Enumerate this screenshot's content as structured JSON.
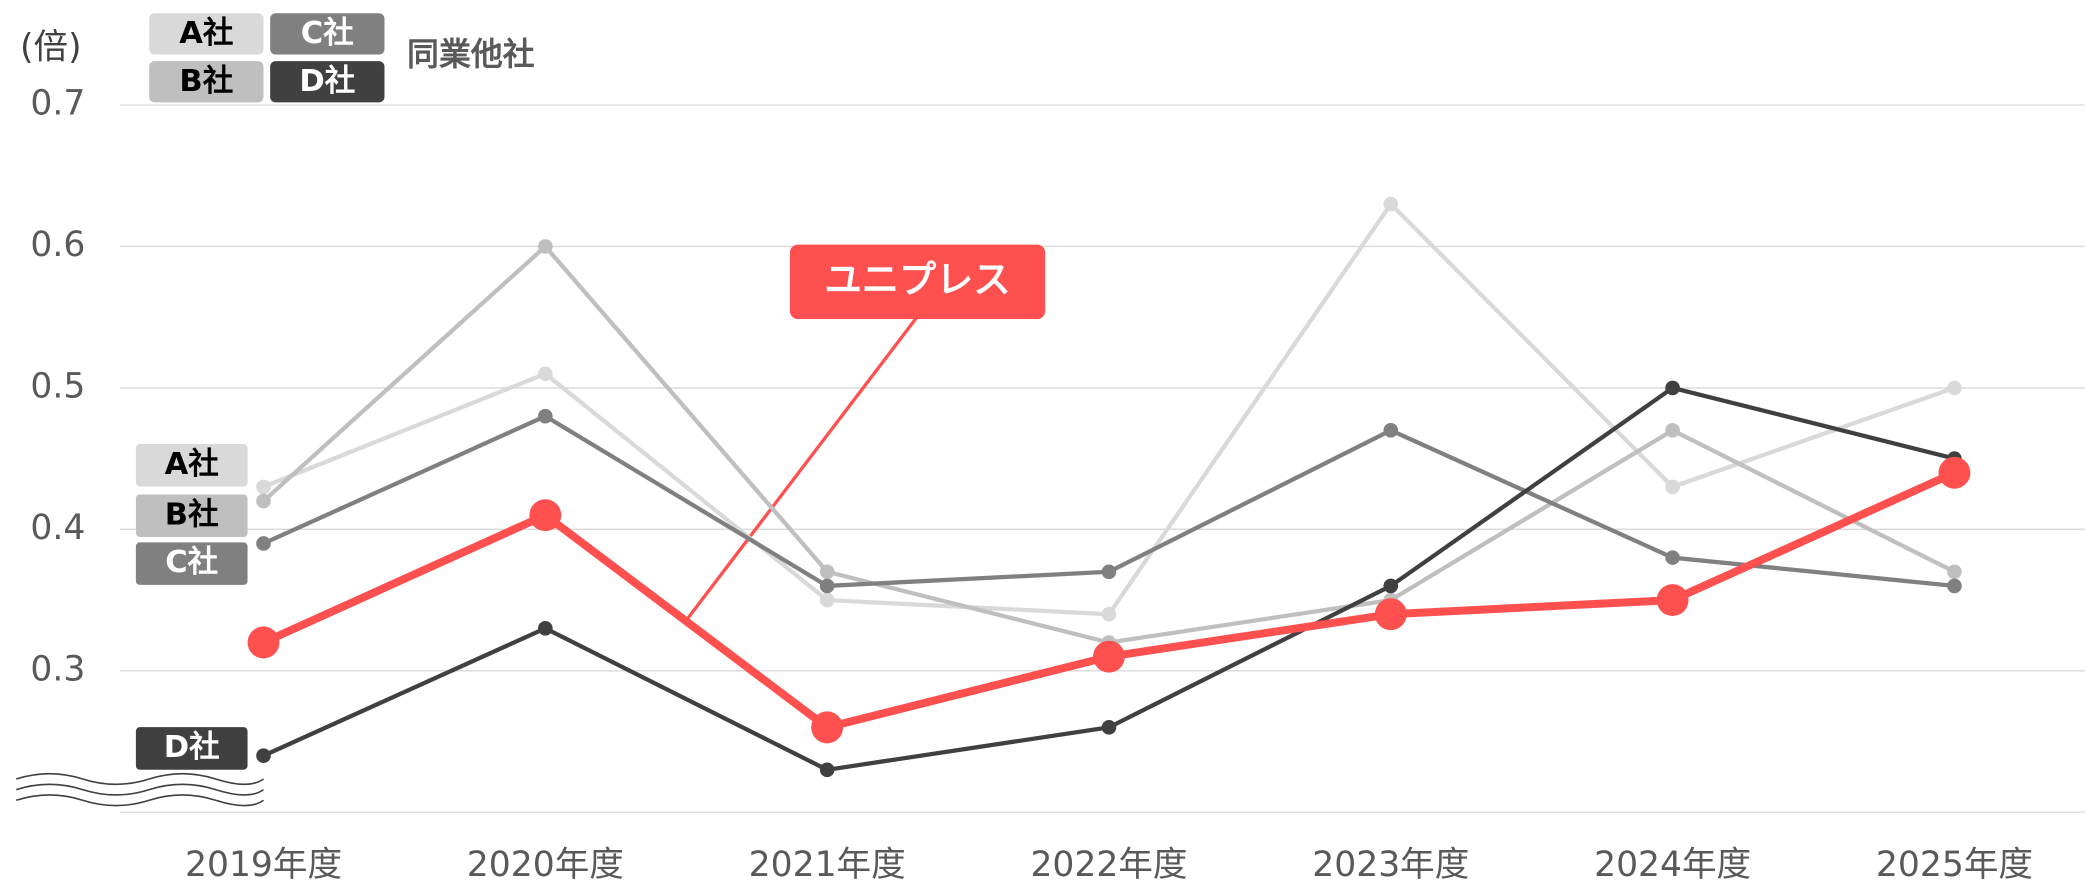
{
  "chart_data": {
    "type": "line",
    "unit_label": "(倍)",
    "legend_title": "同業他社",
    "categories": [
      "2019年度",
      "2020年度",
      "2021年度",
      "2022年度",
      "2023年度",
      "2024年度",
      "2025年度"
    ],
    "series": [
      {
        "name": "A社",
        "color": "#d9d9d9",
        "values": [
          0.43,
          0.51,
          0.35,
          0.34,
          0.63,
          0.43,
          0.5
        ]
      },
      {
        "name": "B社",
        "color": "#bfbfbf",
        "values": [
          0.42,
          0.6,
          0.37,
          0.32,
          0.35,
          0.47,
          0.37
        ]
      },
      {
        "name": "C社",
        "color": "#808080",
        "values": [
          0.39,
          0.48,
          0.36,
          0.37,
          0.47,
          0.38,
          0.36
        ]
      },
      {
        "name": "D社",
        "color": "#404040",
        "values": [
          0.24,
          0.33,
          0.23,
          0.26,
          0.36,
          0.5,
          0.45
        ]
      },
      {
        "name": "ユニプレス",
        "color": "#ff5050",
        "values": [
          0.32,
          0.41,
          0.26,
          0.31,
          0.34,
          0.35,
          0.44
        ]
      }
    ],
    "ylim": [
      0.2,
      0.7
    ],
    "yticks": [
      0.3,
      0.4,
      0.5,
      0.6,
      0.7
    ],
    "grid": true
  }
}
